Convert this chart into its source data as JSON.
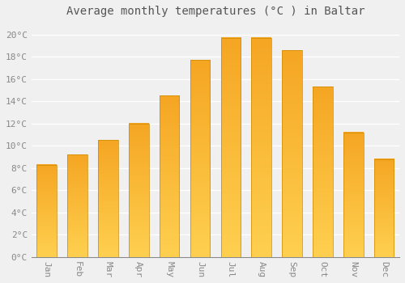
{
  "title": "Average monthly temperatures (°C ) in Baltar",
  "months": [
    "Jan",
    "Feb",
    "Mar",
    "Apr",
    "May",
    "Jun",
    "Jul",
    "Aug",
    "Sep",
    "Oct",
    "Nov",
    "Dec"
  ],
  "values": [
    8.3,
    9.2,
    10.5,
    12.0,
    14.5,
    17.7,
    19.7,
    19.7,
    18.6,
    15.3,
    11.2,
    8.8
  ],
  "bar_color_orange": "#F5A623",
  "bar_color_yellow": "#FFD050",
  "ylim": [
    0,
    21
  ],
  "yticks": [
    0,
    2,
    4,
    6,
    8,
    10,
    12,
    14,
    16,
    18,
    20
  ],
  "ytick_labels": [
    "0°C",
    "2°C",
    "4°C",
    "6°C",
    "8°C",
    "10°C",
    "12°C",
    "14°C",
    "16°C",
    "18°C",
    "20°C"
  ],
  "background_color": "#f0f0f0",
  "grid_color": "#ffffff",
  "title_fontsize": 10,
  "tick_fontsize": 8,
  "bar_width": 0.65
}
